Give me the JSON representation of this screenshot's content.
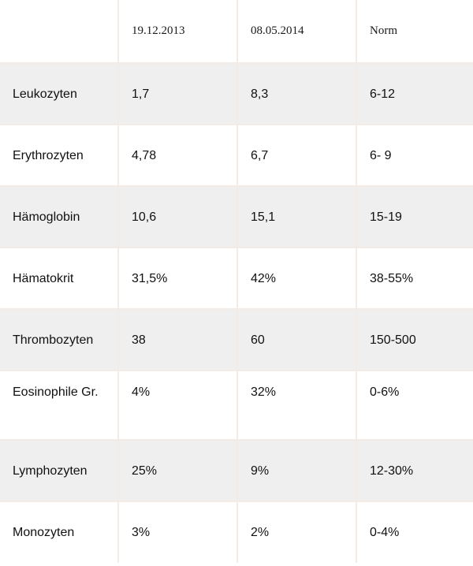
{
  "table": {
    "headers": [
      "",
      "19.12.2013",
      "08.05.2014",
      "Norm"
    ],
    "rows": [
      [
        "Leukozyten",
        "1,7",
        "8,3",
        "6-12"
      ],
      [
        "Erythrozyten",
        "4,78",
        "6,7",
        "6- 9"
      ],
      [
        "Hämoglobin",
        "10,6",
        "15,1",
        "15-19"
      ],
      [
        "Hämatokrit",
        "31,5%",
        "42%",
        "38-55%"
      ],
      [
        "Thrombozyten",
        "38",
        "60",
        "150-500"
      ],
      [
        "Eosinophile Gr.",
        "4%",
        "32%",
        "0-6%"
      ],
      [
        "Lymphozyten",
        "25%",
        "9%",
        "12-30%"
      ],
      [
        "Monozyten",
        "3%",
        "2%",
        "0-4%"
      ]
    ]
  }
}
